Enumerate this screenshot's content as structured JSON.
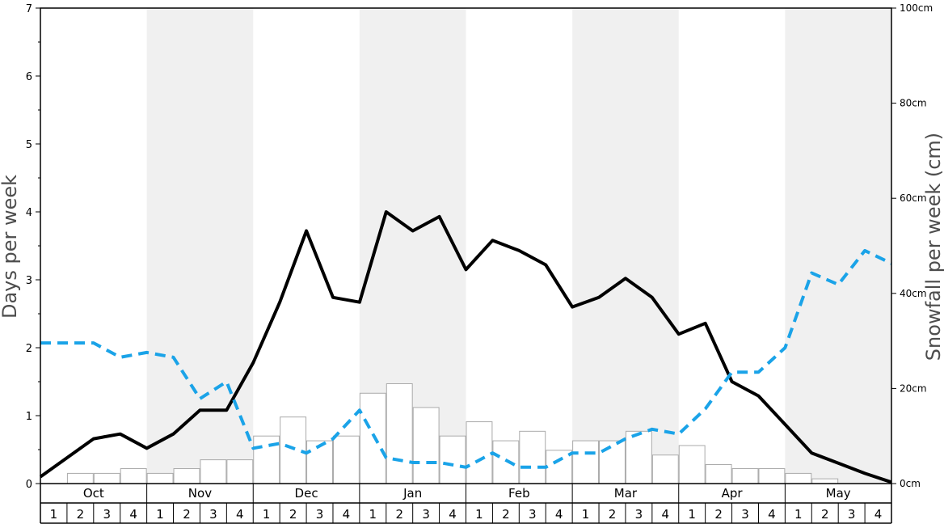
{
  "chart_data": {
    "type": "bar",
    "ylabel": "Days per week",
    "y2label": "Snowfall per week (cm)",
    "ylim": [
      0,
      7
    ],
    "y2lim": [
      0,
      100
    ],
    "yticks": [
      "0",
      "1",
      "2",
      "3",
      "4",
      "5",
      "6",
      "7"
    ],
    "y2ticks": [
      "0cm",
      "20cm",
      "40cm",
      "60cm",
      "80cm",
      "100cm"
    ],
    "y2tick_values": [
      0,
      20,
      40,
      60,
      80,
      100
    ],
    "months": [
      "Oct",
      "Nov",
      "Dec",
      "Jan",
      "Feb",
      "Mar",
      "Apr",
      "May"
    ],
    "weeks": [
      "1",
      "2",
      "3",
      "4"
    ],
    "shaded_months": [
      "Nov",
      "Jan",
      "Mar",
      "May"
    ],
    "colors": {
      "shade": "#f0f0f0",
      "bars_fill": "#ffffff",
      "bars_stroke": "#aaaaaa",
      "solid_line": "#000000",
      "dashed_line": "#1aa3e8"
    },
    "series": [
      {
        "kind": "bar",
        "values": [
          0,
          0.15,
          0.15,
          0.22,
          0.15,
          0.22,
          0.35,
          0.35,
          0.7,
          0.98,
          0.63,
          0.7,
          1.33,
          1.47,
          1.12,
          0.7,
          0.91,
          0.63,
          0.77,
          0.49,
          0.63,
          0.63,
          0.77,
          0.42,
          0.56,
          0.28,
          0.22,
          0.22,
          0.15,
          0.07,
          0,
          0
        ]
      },
      {
        "kind": "line",
        "style": "solid",
        "values": [
          0.1,
          0.38,
          0.66,
          0.73,
          0.52,
          0.73,
          1.08,
          1.08,
          1.78,
          2.67,
          3.72,
          2.74,
          2.67,
          4.0,
          3.72,
          3.93,
          3.15,
          3.58,
          3.43,
          3.22,
          2.6,
          2.74,
          3.02,
          2.74,
          2.2,
          2.36,
          1.5,
          1.29,
          0.87,
          0.45,
          0.3,
          0.15,
          0.02
        ]
      },
      {
        "kind": "line",
        "style": "dashed",
        "values": [
          2.07,
          2.07,
          2.07,
          1.86,
          1.93,
          1.86,
          1.25,
          1.5,
          0.52,
          0.59,
          0.45,
          0.66,
          1.08,
          0.38,
          0.31,
          0.31,
          0.24,
          0.45,
          0.24,
          0.24,
          0.45,
          0.45,
          0.66,
          0.8,
          0.73,
          1.1,
          1.64,
          1.64,
          2.0,
          3.1,
          2.93,
          3.43,
          3.24
        ]
      }
    ]
  }
}
